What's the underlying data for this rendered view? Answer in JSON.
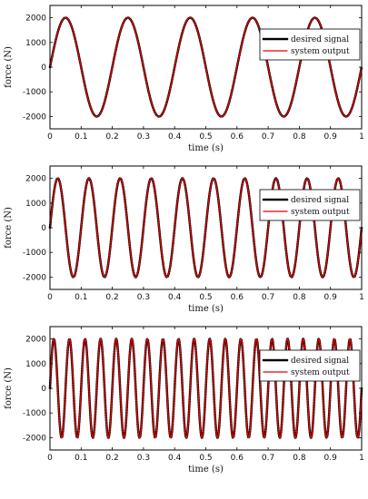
{
  "colors": {
    "desired_signal": "#000000",
    "system_output": "#e00000",
    "axes": "#000000",
    "background": "#ffffff"
  },
  "chart_data": [
    {
      "type": "line",
      "xlabel": "time (s)",
      "ylabel": "force (N)",
      "xlim": [
        0,
        1
      ],
      "ylim": [
        -2500,
        2500
      ],
      "xticks": [
        "0",
        "0.1",
        "0.2",
        "0.3",
        "0.4",
        "0.5",
        "0.6",
        "0.7",
        "0.8",
        "0.9",
        "1"
      ],
      "yticks": [
        "2000",
        "1000",
        "0",
        "-1000",
        "-2000"
      ],
      "grid": false,
      "legend": "top-right",
      "series": [
        {
          "name": "desired signal",
          "style": "dotted",
          "amplitude": 2000,
          "frequency_hz": 5
        },
        {
          "name": "system output",
          "style": "solid",
          "amplitude": 2000,
          "frequency_hz": 5
        }
      ]
    },
    {
      "type": "line",
      "xlabel": "time (s)",
      "ylabel": "force (N)",
      "xlim": [
        0,
        1
      ],
      "ylim": [
        -2500,
        2500
      ],
      "xticks": [
        "0",
        "0.1",
        "0.2",
        "0.3",
        "0.4",
        "0.5",
        "0.6",
        "0.7",
        "0.8",
        "0.9",
        "1"
      ],
      "yticks": [
        "2000",
        "1000",
        "0",
        "-1000",
        "-2000"
      ],
      "grid": false,
      "legend": "top-right",
      "series": [
        {
          "name": "desired signal",
          "style": "dotted",
          "amplitude": 2000,
          "frequency_hz": 10
        },
        {
          "name": "system output",
          "style": "solid",
          "amplitude": 2000,
          "frequency_hz": 10
        }
      ]
    },
    {
      "type": "line",
      "xlabel": "time (s)",
      "ylabel": "force (N)",
      "xlim": [
        0,
        1
      ],
      "ylim": [
        -2500,
        2500
      ],
      "xticks": [
        "0",
        "0.1",
        "0.2",
        "0.3",
        "0.4",
        "0.5",
        "0.6",
        "0.7",
        "0.8",
        "0.9",
        "1"
      ],
      "yticks": [
        "2000",
        "1000",
        "0",
        "-1000",
        "-2000"
      ],
      "grid": false,
      "legend": "top-right",
      "series": [
        {
          "name": "desired signal",
          "style": "dotted",
          "amplitude": 2000,
          "frequency_hz": 20
        },
        {
          "name": "system output",
          "style": "solid",
          "amplitude": 2000,
          "frequency_hz": 20
        }
      ]
    }
  ]
}
